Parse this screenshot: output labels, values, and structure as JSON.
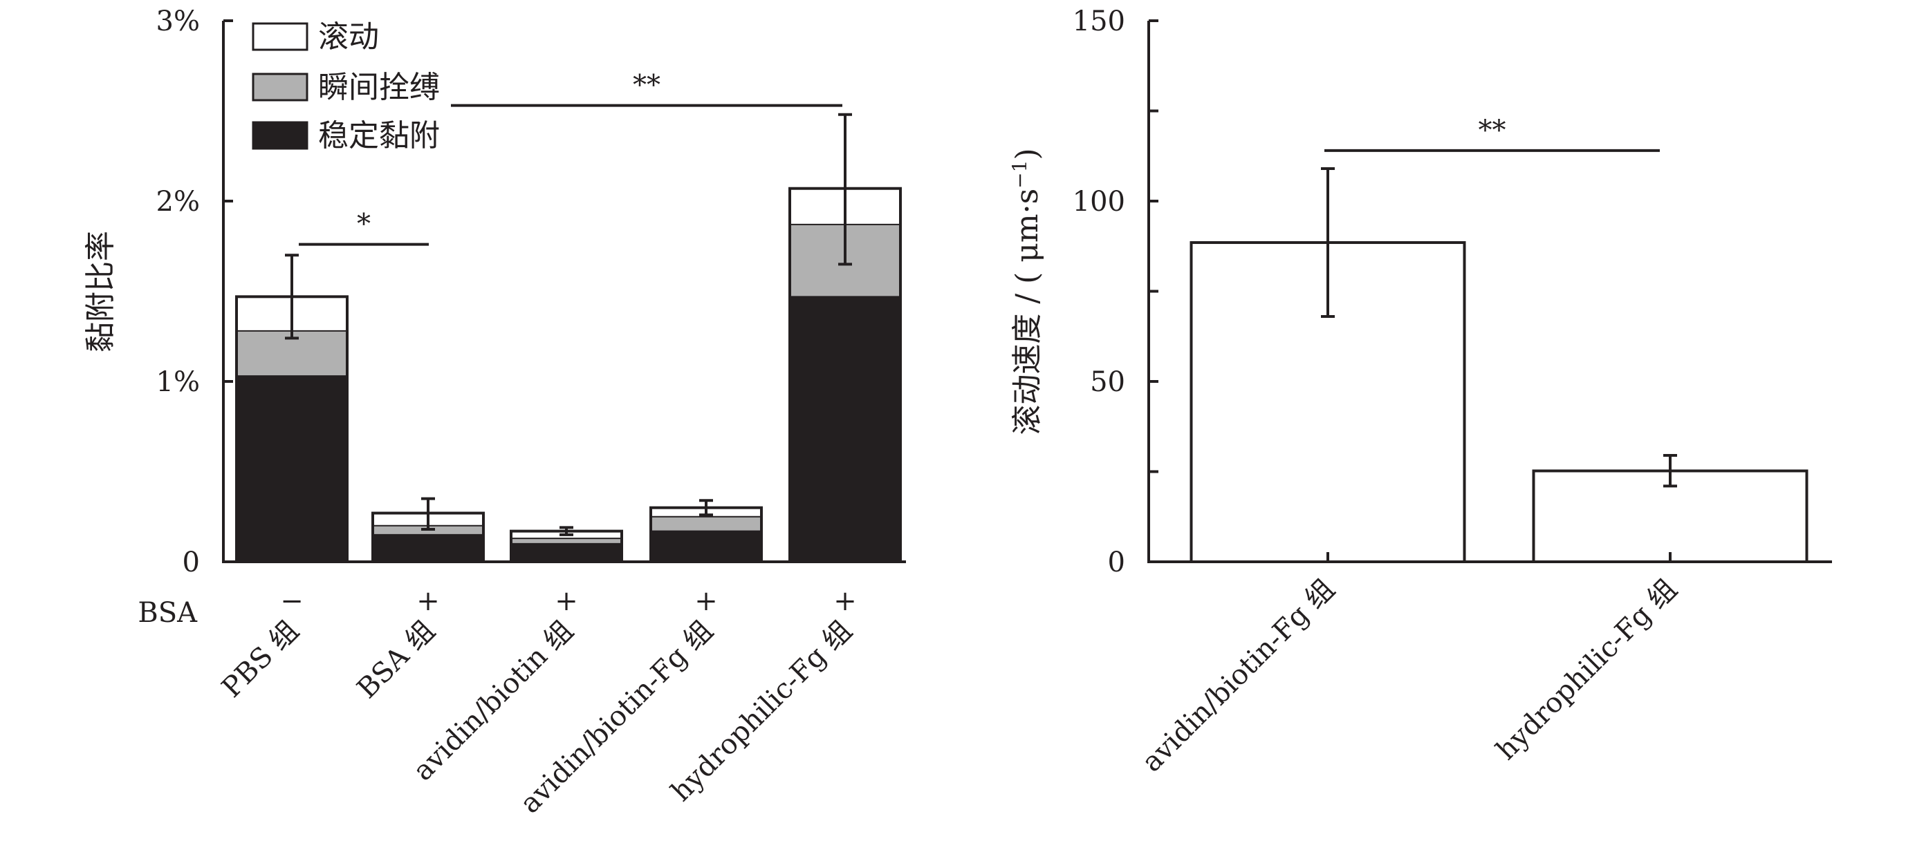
{
  "chart_data": [
    {
      "type": "bar",
      "stacked": true,
      "title": "",
      "xlabel": "",
      "ylabel": "黏附比率",
      "ylim": [
        0,
        3
      ],
      "yticks": [
        0,
        1,
        2,
        3
      ],
      "ytick_labels": [
        "0",
        "1%",
        "2%",
        "3%"
      ],
      "categories": [
        "PBS 组",
        "BSA 组",
        "avidin/biotin 组",
        "avidin/biotin-Fg 组",
        "hydrophilic-Fg 组"
      ],
      "row_label": "BSA",
      "row_values": [
        "−",
        "+",
        "+",
        "+",
        "+"
      ],
      "series": [
        {
          "name": "稳定黏附",
          "color": "#231f20",
          "values": [
            1.03,
            0.15,
            0.1,
            0.17,
            1.47
          ]
        },
        {
          "name": "瞬间拴缚",
          "color": "#b1b1b1",
          "values": [
            0.25,
            0.05,
            0.03,
            0.08,
            0.4
          ]
        },
        {
          "name": "滚动",
          "color": "#ffffff",
          "values": [
            0.19,
            0.07,
            0.04,
            0.05,
            0.2
          ]
        }
      ],
      "error_bars": {
        "upper": [
          1.7,
          0.35,
          0.19,
          0.34,
          2.48
        ],
        "lower": [
          1.24,
          0.18,
          0.15,
          0.26,
          1.65
        ]
      },
      "significance": [
        {
          "from": 0,
          "to": 1,
          "label": "*",
          "y": 1.76
        },
        {
          "from": 1,
          "to": 4,
          "label": "**",
          "y": 2.53
        }
      ],
      "legend_position": "top-left",
      "grid": false
    },
    {
      "type": "bar",
      "title": "",
      "xlabel": "",
      "ylabel": "滚动速度 / ( μm·s",
      "ylabel_sup": "−1",
      "ylabel_end": ")",
      "ylim": [
        0,
        150
      ],
      "yticks": [
        0,
        50,
        100,
        150
      ],
      "ytick_labels": [
        "0",
        "50",
        "100",
        "150"
      ],
      "categories": [
        "avidin/biotin-Fg 组",
        "hydrophilic-Fg 组"
      ],
      "values": [
        88.5,
        25.2
      ],
      "error_bars": {
        "upper": [
          109,
          29.5
        ],
        "lower": [
          68,
          21
        ]
      },
      "significance": [
        {
          "from": 0,
          "to": 1,
          "label": "**",
          "y": 114
        }
      ],
      "grid": false
    }
  ]
}
